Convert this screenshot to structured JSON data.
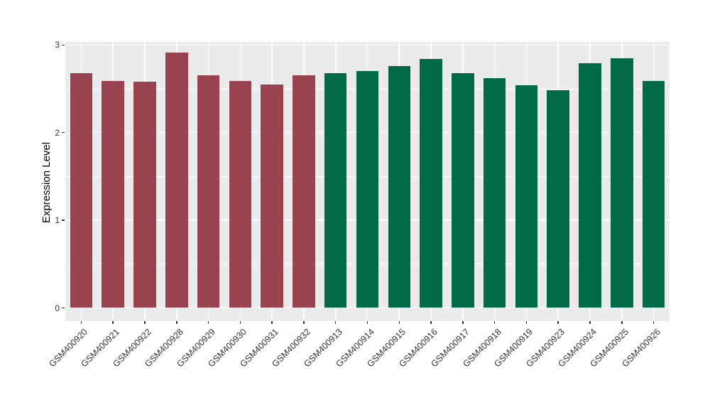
{
  "figure": {
    "background": "#FFFFFF"
  },
  "chart_data": {
    "type": "bar",
    "title": "",
    "xlabel": "",
    "ylabel": "Expression Level",
    "ylim": [
      0,
      3
    ],
    "yticks_major": [
      0,
      1,
      2,
      3
    ],
    "yticks_minor": [
      0.5,
      1.5,
      2.5
    ],
    "grid": true,
    "legend_position": "none",
    "panel_background": "#EBEBEB",
    "grid_major_color": "#FFFFFF",
    "grid_minor_color": "#FFFFFF",
    "axis_text_color": "#333333",
    "categories": [
      "GSM400920",
      "GSM400921",
      "GSM400922",
      "GSM400928",
      "GSM400929",
      "GSM400930",
      "GSM400931",
      "GSM400932",
      "GSM400913",
      "GSM400914",
      "GSM400915",
      "GSM400916",
      "GSM400917",
      "GSM400918",
      "GSM400919",
      "GSM400923",
      "GSM400924",
      "GSM400925",
      "GSM400926"
    ],
    "values": [
      2.68,
      2.59,
      2.58,
      2.91,
      2.65,
      2.59,
      2.55,
      2.65,
      2.68,
      2.7,
      2.76,
      2.84,
      2.68,
      2.62,
      2.54,
      2.48,
      2.79,
      2.85,
      2.59
    ],
    "bar_groups": [
      "maroon",
      "maroon",
      "maroon",
      "maroon",
      "maroon",
      "maroon",
      "maroon",
      "maroon",
      "green",
      "green",
      "green",
      "green",
      "green",
      "green",
      "green",
      "green",
      "green",
      "green",
      "green"
    ],
    "group_colors": {
      "maroon": "#9A4350",
      "green": "#006A48"
    }
  }
}
